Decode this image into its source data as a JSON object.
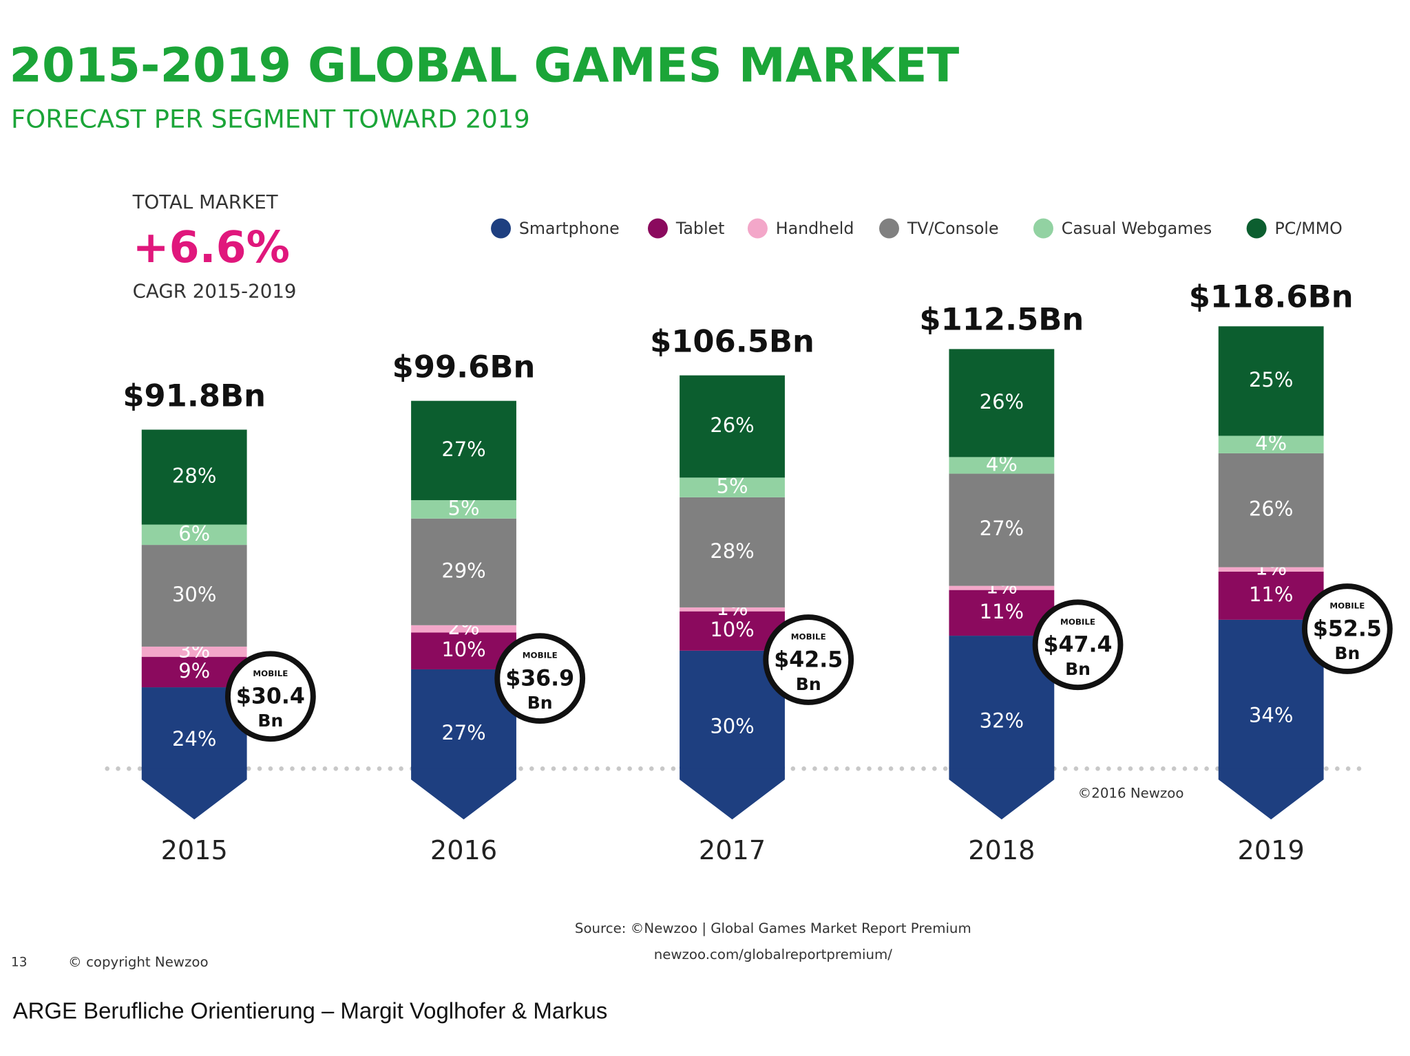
{
  "chart_data": {
    "type": "stacked_bar",
    "title": "2015-2019 GLOBAL GAMES MARKET",
    "subtitle": "FORECAST PER SEGMENT TOWARD 2019",
    "summary": {
      "label": "TOTAL MARKET",
      "value": "+6.6%",
      "caption": "CAGR 2015-2019"
    },
    "categories": [
      "2015",
      "2016",
      "2017",
      "2018",
      "2019"
    ],
    "totals": {
      "values": [
        91.8,
        99.6,
        106.5,
        112.5,
        118.6
      ],
      "value_labels": [
        "$91.8Bn",
        "$99.6Bn",
        "$106.5Bn",
        "$112.5Bn",
        "$118.6Bn"
      ]
    },
    "series": [
      {
        "name": "Smartphone",
        "color": "#1e3f80",
        "values": [
          24,
          27,
          30,
          32,
          34
        ],
        "value_labels": [
          "24%",
          "27%",
          "30%",
          "32%",
          "34%"
        ]
      },
      {
        "name": "Tablet",
        "color": "#8b0a5e",
        "values": [
          9,
          10,
          10,
          11,
          11
        ],
        "value_labels": [
          "9%",
          "10%",
          "10%",
          "11%",
          "11%"
        ]
      },
      {
        "name": "Handheld",
        "color": "#f3a7c9",
        "values": [
          3,
          2,
          1,
          1,
          1
        ],
        "value_labels": [
          "3%",
          "2%",
          "1%",
          "1%",
          "1%"
        ]
      },
      {
        "name": "TV/Console",
        "color": "#808080",
        "values": [
          30,
          29,
          28,
          27,
          26
        ],
        "value_labels": [
          "30%",
          "29%",
          "28%",
          "27%",
          "26%"
        ]
      },
      {
        "name": "Casual Webgames",
        "color": "#92d2a2",
        "values": [
          6,
          5,
          5,
          4,
          4
        ],
        "value_labels": [
          "6%",
          "5%",
          "5%",
          "4%",
          "4%"
        ]
      },
      {
        "name": "PC/MMO",
        "color": "#0c5e2f",
        "values": [
          28,
          27,
          26,
          26,
          25
        ],
        "value_labels": [
          "28%",
          "27%",
          "26%",
          "26%",
          "25%"
        ]
      }
    ],
    "mobile": {
      "label": "MOBILE",
      "unit": "Bn",
      "values": [
        30.4,
        36.9,
        42.5,
        47.4,
        52.5
      ],
      "value_labels": [
        "$30.4",
        "$36.9",
        "$42.5",
        "$47.4",
        "$52.5"
      ]
    },
    "credit": "©2016 Newzoo",
    "source": [
      "Source: ©Newzoo | Global Games Market Report Premium",
      "newzoo.com/globalreportpremium/"
    ],
    "page_number": "13",
    "copyright": "© copyright Newzoo",
    "footer": "ARGE Berufliche Orientierung – Margit Voglhofer & Markus"
  }
}
